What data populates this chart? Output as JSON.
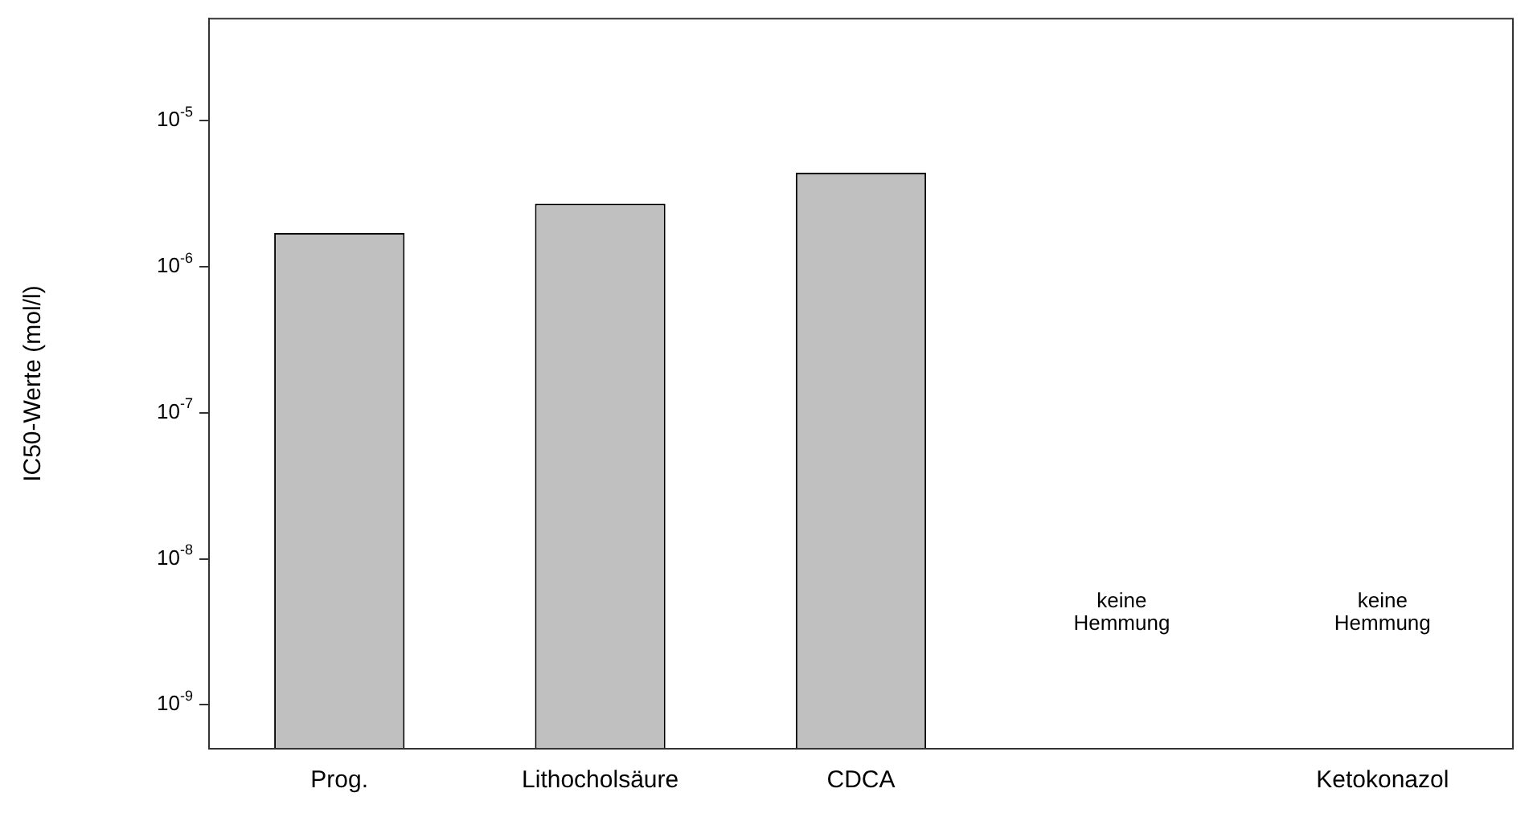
{
  "chart_data": {
    "type": "bar",
    "ylabel": "IC50-Werte (mol/l)",
    "categories": [
      "Prog.",
      "Lithocholsäure",
      "CDCA",
      null,
      "Ketokonazol"
    ],
    "values": [
      1.7e-06,
      2.7e-06,
      4.4e-06,
      null,
      null
    ],
    "value_labels": [
      null,
      null,
      null,
      "keine\nHemmung",
      "keine\nHemmung"
    ],
    "color": "#c0c0c0",
    "log": true,
    "ylim": [
      5e-10,
      5e-05
    ],
    "yticks": [
      {
        "value": 1e-09,
        "label": "10$^{-9}$"
      },
      {
        "value": 1e-08,
        "label": "10$^{-8}$"
      },
      {
        "value": 1e-07,
        "label": "10$^{-7}$"
      },
      {
        "value": 1e-06,
        "label": "10$^{-6}$"
      },
      {
        "value": 1e-05,
        "label": "10$^{-5}$"
      }
    ]
  }
}
